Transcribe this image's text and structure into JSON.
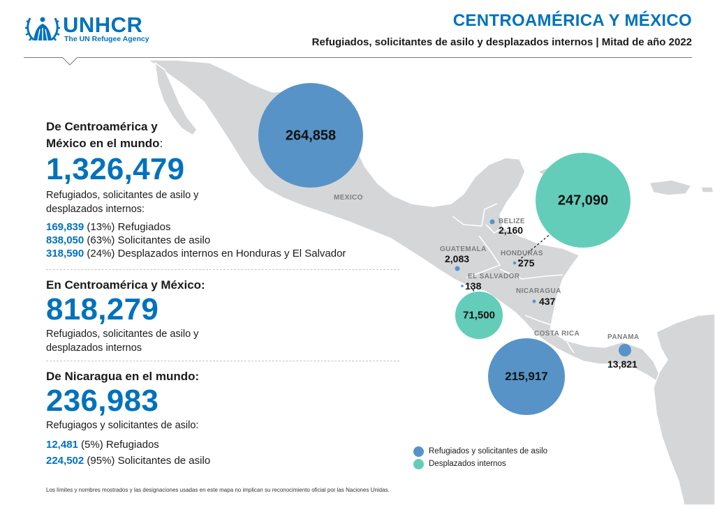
{
  "header": {
    "logo_name": "UNHCR",
    "logo_sub": "The UN Refugee Agency",
    "title": "CENTROAMÉRICA Y MÉXICO",
    "subtitle": "Refugiados, solicitantes de asilo y desplazados internos | Mitad de año 2022"
  },
  "colors": {
    "brand": "#0072bc",
    "refugees": "#5793c7",
    "idps": "#63cdb9",
    "land": "#d5d6d8"
  },
  "sections": {
    "world": {
      "heading_line1": "De Centroamérica y",
      "heading_line2": "México en el mundo",
      "heading_colon": ":",
      "total": "1,326,479",
      "desc_line1": "Refugiados, solicitantes de asilo y",
      "desc_line2": "desplazados internos:",
      "stats": [
        {
          "num": "169,839",
          "text": " (13%) Refugiados"
        },
        {
          "num": "838,050",
          "text": " (63%) Solicitantes de asilo"
        },
        {
          "num": "318,590",
          "text": " (24%) Desplazados internos en Honduras y El Salvador"
        }
      ]
    },
    "region": {
      "heading": "En Centroamérica y México:",
      "total": "818,279",
      "desc_line1": "Refugiados, solicitantes de asilo y",
      "desc_line2": "desplazados internos"
    },
    "nicaragua": {
      "heading": "De Nicaragua en el mundo:",
      "total": "236,983",
      "desc_line1": "Refugiagos y solicitantes de asilo:",
      "stats": [
        {
          "num": "12,481",
          "text": " (5%) Refugiados"
        },
        {
          "num": "224,502",
          "text": " (95%) Solicitantes de asilo"
        }
      ]
    }
  },
  "map": {
    "countries": {
      "mexico": "MEXICO",
      "belize": "BELIZE",
      "guatemala": "GUATEMALA",
      "honduras": "HONDURAS",
      "el_salvador": "EL SALVADOR",
      "nicaragua": "NICARAGUA",
      "costa_rica": "COSTA RICA",
      "panama": "PANAMA"
    },
    "bubbles": {
      "mexico_refugees": "264,858",
      "honduras_idps": "247,090",
      "el_salvador_idps": "71,500",
      "costa_rica_refugees": "215,917"
    },
    "values": {
      "belize": "2,160",
      "guatemala": "2,083",
      "honduras": "275",
      "el_salvador": "138",
      "nicaragua": "437",
      "panama": "13,821"
    }
  },
  "legend": {
    "refugees": "Refugiados y solicitantes de asilo",
    "idps": "Desplazados internos"
  },
  "disclaimer": "Los límites y nombres mostrados y las designaciones usadas en este mapa no implican su reconocimiento oficial por las Naciones Unidas."
}
